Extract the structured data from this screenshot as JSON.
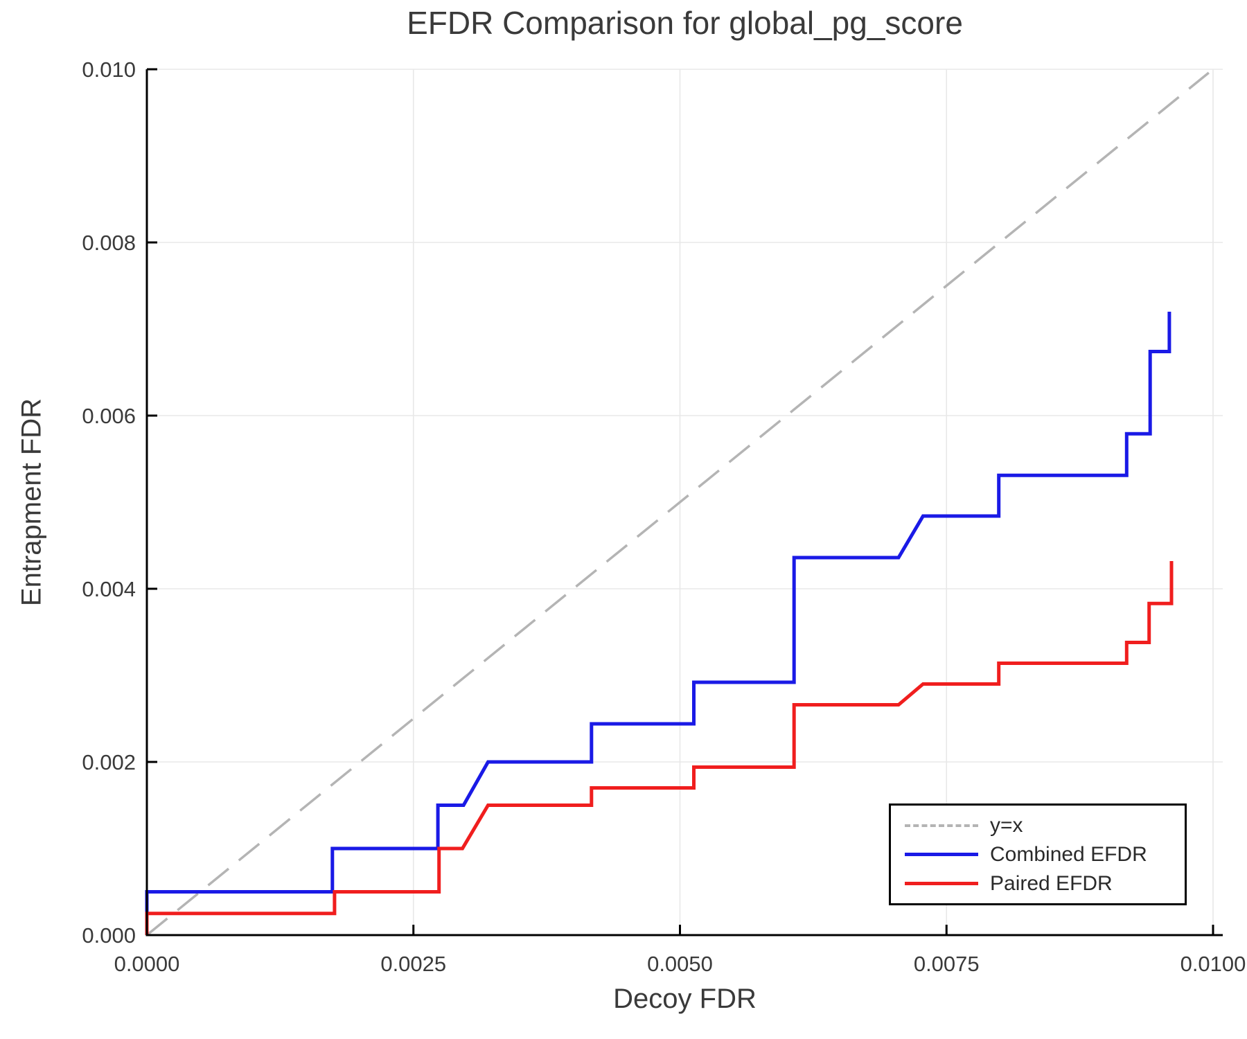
{
  "title": "EFDR Comparison for global_pg_score",
  "colors": {
    "combined": "#1a1ae6",
    "paired": "#f01e1e",
    "diagonal": "#b4b4b4",
    "grid": "#e8e8e8",
    "spine": "#000000",
    "text": "#3a3a3a"
  },
  "legend": {
    "items": [
      {
        "label": "y=x",
        "style": "dashed",
        "color": "#b4b4b4"
      },
      {
        "label": "Combined EFDR",
        "style": "solid",
        "color": "#1a1ae6"
      },
      {
        "label": "Paired EFDR",
        "style": "solid",
        "color": "#f01e1e"
      }
    ]
  },
  "chart_data": {
    "type": "line",
    "title": "EFDR Comparison for global_pg_score",
    "xlabel": "Decoy FDR",
    "ylabel": "Entrapment FDR",
    "xlim": [
      0,
      0.010091
    ],
    "ylim": [
      0,
      0.01
    ],
    "grid": true,
    "legend_position": "lower right",
    "x_ticks": {
      "values": [
        0.0,
        0.0025,
        0.005,
        0.0075,
        0.01
      ],
      "labels": [
        "0.0000",
        "0.0025",
        "0.0050",
        "0.0075",
        "0.0100"
      ]
    },
    "y_ticks": {
      "values": [
        0.0,
        0.002,
        0.004,
        0.006,
        0.008,
        0.01
      ],
      "labels": [
        "0.000",
        "0.002",
        "0.004",
        "0.006",
        "0.008",
        "0.010"
      ]
    },
    "series": [
      {
        "name": "y=x",
        "style": "dashed",
        "color": "#b4b4b4",
        "width": 3.5,
        "dash": "38 19",
        "points": [
          [
            0,
            0
          ],
          [
            0.00996,
            0.00996
          ]
        ]
      },
      {
        "name": "Combined EFDR",
        "style": "solid",
        "color": "#1a1ae6",
        "width": 5,
        "points": [
          [
            0,
            0
          ],
          [
            0,
            0.0005
          ],
          [
            0.00174,
            0.0005
          ],
          [
            0.00174,
            0.001
          ],
          [
            0.00273,
            0.001
          ],
          [
            0.00273,
            0.0015
          ],
          [
            0.00297,
            0.0015
          ],
          [
            0.0032,
            0.002
          ],
          [
            0.00417,
            0.002
          ],
          [
            0.00417,
            0.00244
          ],
          [
            0.00513,
            0.00244
          ],
          [
            0.00513,
            0.00292
          ],
          [
            0.00607,
            0.00292
          ],
          [
            0.00607,
            0.00436
          ],
          [
            0.00705,
            0.00436
          ],
          [
            0.00728,
            0.00484
          ],
          [
            0.00799,
            0.00484
          ],
          [
            0.00799,
            0.00531
          ],
          [
            0.00919,
            0.00531
          ],
          [
            0.00919,
            0.00579
          ],
          [
            0.00941,
            0.00579
          ],
          [
            0.00941,
            0.00674
          ],
          [
            0.00959,
            0.00674
          ],
          [
            0.00959,
            0.0072
          ]
        ]
      },
      {
        "name": "Paired EFDR",
        "style": "solid",
        "color": "#f01e1e",
        "width": 5,
        "points": [
          [
            0,
            0
          ],
          [
            0,
            0.00025
          ],
          [
            0.00176,
            0.00025
          ],
          [
            0.00176,
            0.0005
          ],
          [
            0.00274,
            0.0005
          ],
          [
            0.00274,
            0.001
          ],
          [
            0.00296,
            0.001
          ],
          [
            0.0032,
            0.0015
          ],
          [
            0.00417,
            0.0015
          ],
          [
            0.00417,
            0.0017
          ],
          [
            0.00513,
            0.0017
          ],
          [
            0.00513,
            0.00194
          ],
          [
            0.00607,
            0.00194
          ],
          [
            0.00607,
            0.00266
          ],
          [
            0.00705,
            0.00266
          ],
          [
            0.00728,
            0.0029
          ],
          [
            0.00799,
            0.0029
          ],
          [
            0.00799,
            0.00314
          ],
          [
            0.00919,
            0.00314
          ],
          [
            0.00919,
            0.00338
          ],
          [
            0.0094,
            0.00338
          ],
          [
            0.0094,
            0.00383
          ],
          [
            0.00961,
            0.00383
          ],
          [
            0.00961,
            0.00432
          ]
        ]
      }
    ]
  }
}
